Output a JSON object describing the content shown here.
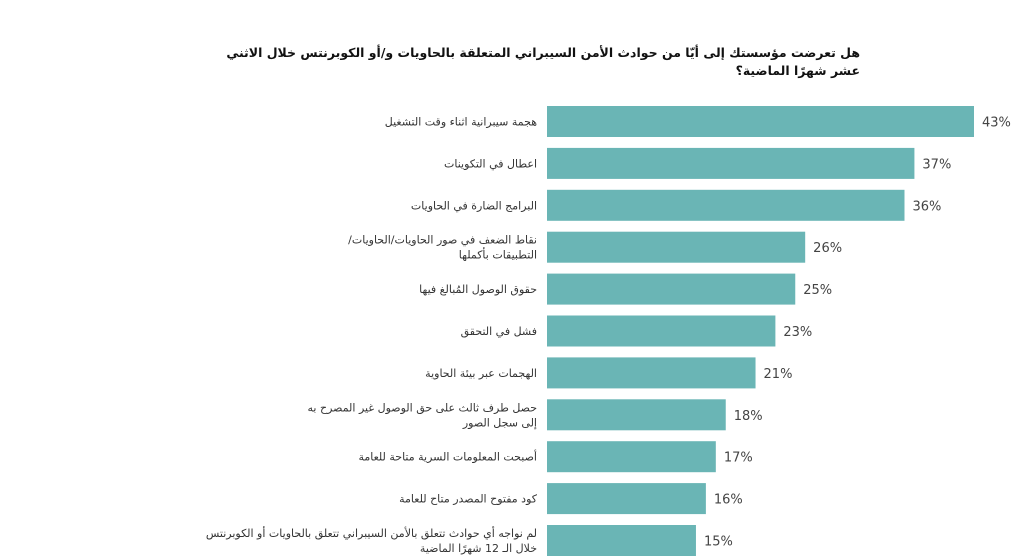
{
  "chart_data": {
    "type": "bar",
    "orientation": "horizontal",
    "title_lines": [
      "هل تعرضت مؤسستك إلى أيّا من حوادث الأمن السيبراني المتعلقة بالحاويات و/أو الكوبرنتس خلال الاثني",
      "عشر شهرًا الماضية؟"
    ],
    "categories": [
      [
        "هجمة سيبرانية اثناء وقت التشغيل"
      ],
      [
        "اعطال في التكوينات"
      ],
      [
        "البرامج الضارة في الحاويات"
      ],
      [
        "نقاط الضعف في صور الحاويات/الحاويات/",
        "التطبيقات بأكملها"
      ],
      [
        "حقوق الوصول المُبالغ فيها"
      ],
      [
        "فشل في التحقق"
      ],
      [
        "الهجمات عبر بيئة الحاوية"
      ],
      [
        "حصل طرف ثالث على حق الوصول غير المصرح به",
        "إلى سجل الصور"
      ],
      [
        "أصبحت المعلومات السرية متاحة للعامة"
      ],
      [
        "كود مفتوح المصدر متاح للعامة"
      ],
      [
        "لم نواجه أي حوادث تتعلق بالأمن السيبراني تتعلق بالحاويات أو الكوبرنتس",
        "خلال الـ 12 شهرًا الماضية"
      ]
    ],
    "values": [
      43,
      37,
      36,
      26,
      25,
      23,
      21,
      18,
      17,
      16,
      15
    ],
    "value_suffix": "%",
    "bar_color": "#6ab5b5",
    "xlim": [
      0,
      43
    ],
    "grid": false,
    "legend": "none"
  }
}
